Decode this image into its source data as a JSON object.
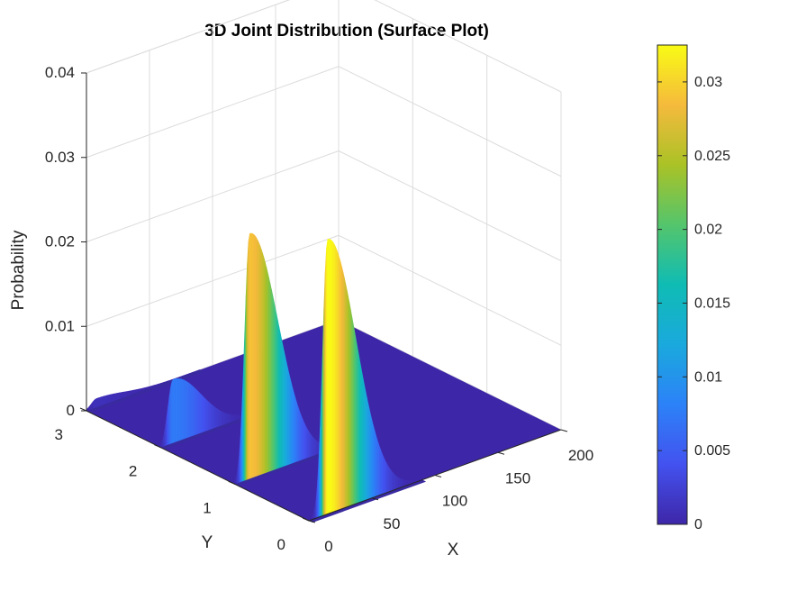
{
  "chart_data": {
    "type": "surface",
    "title": "3D Joint Distribution (Surface Plot)",
    "xlabel": "X",
    "ylabel": "Y",
    "zlabel": "Probability",
    "xlim": [
      0,
      200
    ],
    "ylim": [
      0,
      3
    ],
    "zlim": [
      0,
      0.04
    ],
    "x_ticks": [
      "0",
      "50",
      "100",
      "150",
      "200"
    ],
    "y_ticks": [
      "0",
      "1",
      "2",
      "3"
    ],
    "z_ticks": [
      "0",
      "0.01",
      "0.02",
      "0.03",
      "0.04"
    ],
    "grid": true,
    "colormap": "parula",
    "colorbar": {
      "clim": [
        0,
        0.0325
      ],
      "ticks": [
        "0",
        "0.005",
        "0.01",
        "0.015",
        "0.02",
        "0.025",
        "0.03"
      ]
    },
    "series": [
      {
        "y": 0,
        "peak_x": 15,
        "peak_probability": 0.0325
      },
      {
        "y": 1,
        "peak_x": 12,
        "peak_probability": 0.029
      },
      {
        "y": 2,
        "peak_x": 10,
        "peak_probability": 0.0075
      },
      {
        "y": 3,
        "peak_x": 8,
        "peak_probability": 0.001
      }
    ]
  }
}
